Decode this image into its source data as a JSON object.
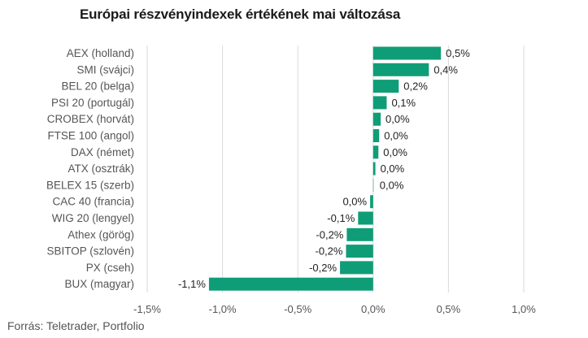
{
  "chart_data": {
    "type": "bar",
    "orientation": "horizontal",
    "title": "Európai részvényindexek értékének mai változása",
    "source": "Forrás: Teletrader, Portfolio",
    "categories": [
      "AEX (holland)",
      "SMI (svájci)",
      "BEL 20 (belga)",
      "PSI 20 (portugál)",
      "CROBEX (horvát)",
      "FTSE 100 (angol)",
      "DAX (német)",
      "ATX (osztrák)",
      "BELEX 15 (szerb)",
      "CAC 40 (francia)",
      "WIG 20 (lengyel)",
      "Athex (görög)",
      "SBITOP (szlovén)",
      "PX (cseh)",
      "BUX (magyar)"
    ],
    "values": [
      0.45,
      0.37,
      0.17,
      0.09,
      0.05,
      0.04,
      0.035,
      0.015,
      0.0,
      -0.02,
      -0.1,
      -0.175,
      -0.18,
      -0.22,
      -1.09
    ],
    "data_labels": [
      "0,5%",
      "0,4%",
      "0,2%",
      "0,1%",
      "0,0%",
      "0,0%",
      "0,0%",
      "0,0%",
      "0,0%",
      "0,0%",
      "-0,1%",
      "-0,2%",
      "-0,2%",
      "-0,2%",
      "-1,1%"
    ],
    "xlim": [
      -1.5,
      1.0
    ],
    "xticks": [
      -1.5,
      -1.0,
      -0.5,
      0.0,
      0.5,
      1.0
    ],
    "xtick_labels": [
      "-1,5%",
      "-1,0%",
      "-0,5%",
      "0,0%",
      "0,5%",
      "1,0%"
    ],
    "grid": true,
    "bar_color": "#0f9d77",
    "grid_color": "#d9d9d9"
  }
}
